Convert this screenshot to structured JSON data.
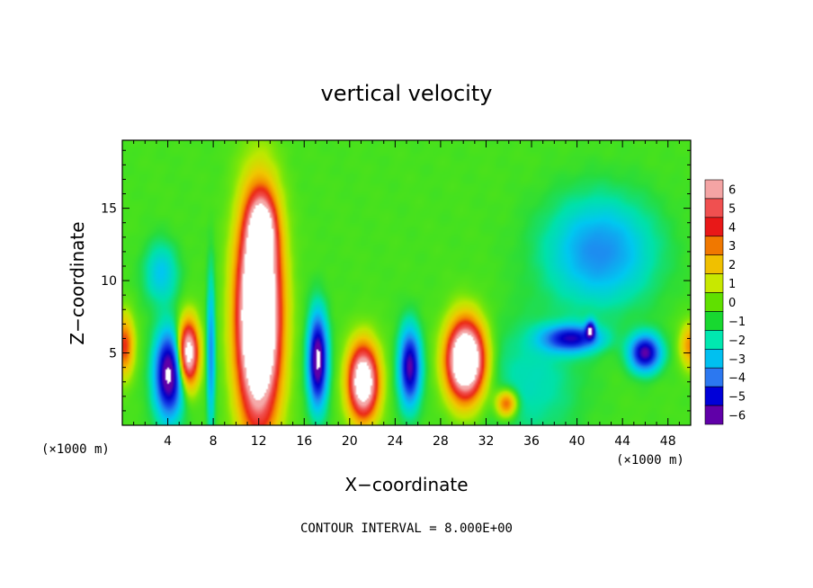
{
  "chart_data": {
    "type": "heatmap",
    "title": "vertical velocity",
    "xlabel": "X−coordinate",
    "ylabel": "Z−coordinate",
    "x_unit_left": "(×1000 m)",
    "x_unit_right": "(×1000 m)",
    "xlim": [
      0,
      50
    ],
    "ylim": [
      0,
      19.7
    ],
    "x_ticks": [
      4,
      8,
      12,
      16,
      20,
      24,
      28,
      32,
      36,
      40,
      44,
      48
    ],
    "y_ticks": [
      5,
      10,
      15
    ],
    "footer": "CONTOUR INTERVAL = 8.000E+00",
    "colorbar": {
      "levels": [
        6,
        5,
        4,
        3,
        2,
        1,
        0,
        -1,
        -2,
        -3,
        -4,
        -5,
        -6
      ],
      "labels": [
        "6",
        "5",
        "4",
        "3",
        "2",
        "1",
        "0",
        "−1",
        "−2",
        "−3",
        "−4",
        "−5",
        "−6"
      ],
      "colors": [
        "#f4a4a4",
        "#f05050",
        "#e81818",
        "#f07800",
        "#f0c000",
        "#c8e800",
        "#60e000",
        "#18d830",
        "#00e8b0",
        "#00c0f0",
        "#2c78f0",
        "#0000d8",
        "#6000a8"
      ]
    },
    "features": [
      {
        "kind": "updraft_core",
        "x": 12,
        "z": 7.5,
        "sx": 1.8,
        "sz": 7.0,
        "w": 13
      },
      {
        "kind": "updraft",
        "x": 12.3,
        "z": 13.5,
        "sx": 1.2,
        "sz": 2.5,
        "w": 5
      },
      {
        "kind": "downdraft",
        "x": 7.8,
        "z": 5,
        "sx": 0.35,
        "sz": 5,
        "w": -3
      },
      {
        "kind": "updraft",
        "x": 5.8,
        "z": 5,
        "sx": 0.9,
        "sz": 2.2,
        "w": 8
      },
      {
        "kind": "downdraft",
        "x": 4.1,
        "z": 3.5,
        "sx": 1.2,
        "sz": 2.8,
        "w": -7
      },
      {
        "kind": "updraft",
        "x": 0.2,
        "z": 5.5,
        "sx": 0.8,
        "sz": 2.0,
        "w": 4
      },
      {
        "kind": "downdraft",
        "x": 3.4,
        "z": 10.5,
        "sx": 1.4,
        "sz": 2.0,
        "w": -2
      },
      {
        "kind": "downdraft",
        "x": 17.2,
        "z": 4.5,
        "sx": 0.8,
        "sz": 3.0,
        "w": -7
      },
      {
        "kind": "updraft",
        "x": 21.2,
        "z": 3.0,
        "sx": 1.3,
        "sz": 2.5,
        "w": 9
      },
      {
        "kind": "downdraft",
        "x": 25.3,
        "z": 4.0,
        "sx": 0.9,
        "sz": 2.5,
        "w": -6
      },
      {
        "kind": "updraft",
        "x": 30.2,
        "z": 4.5,
        "sx": 1.6,
        "sz": 2.6,
        "w": 11
      },
      {
        "kind": "updraft",
        "x": 33.8,
        "z": 1.5,
        "sx": 0.9,
        "sz": 0.9,
        "w": 4
      },
      {
        "kind": "downdraft",
        "x": 42.0,
        "z": 12.0,
        "sx": 4.5,
        "sz": 3.5,
        "w": -3
      },
      {
        "kind": "downdraft",
        "x": 39.5,
        "z": 6.0,
        "sx": 2.5,
        "sz": 0.9,
        "w": -5
      },
      {
        "kind": "downdraft",
        "x": 46.0,
        "z": 5.0,
        "sx": 1.3,
        "sz": 1.2,
        "w": -6
      },
      {
        "kind": "downdraft",
        "x": 41.2,
        "z": 6.6,
        "sx": 0.4,
        "sz": 0.6,
        "w": -5
      },
      {
        "kind": "updraft",
        "x": 50.0,
        "z": 5.5,
        "sx": 0.9,
        "sz": 1.5,
        "w": 3
      },
      {
        "kind": "downdraft",
        "x": 36.0,
        "z": 3.0,
        "sx": 4.0,
        "sz": 4.0,
        "w": -1.2
      }
    ]
  }
}
